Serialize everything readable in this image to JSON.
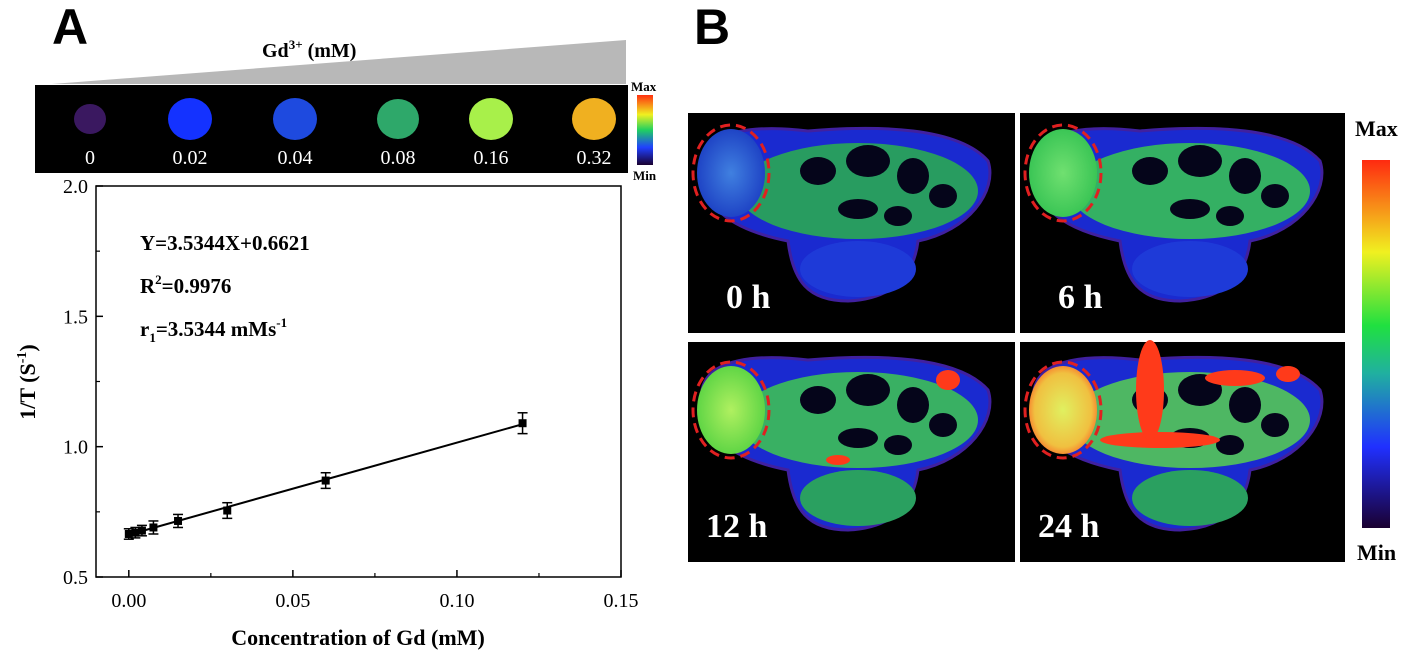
{
  "panel_a": {
    "label": "A",
    "gradient_title": "Gd",
    "gradient_title_sup": "3+",
    "gradient_title_unit": " (mM)",
    "phantoms": [
      {
        "label": "0",
        "color": "#3a1860"
      },
      {
        "label": "0.02",
        "color": "#1432ff"
      },
      {
        "label": "0.04",
        "color": "#1e4adf"
      },
      {
        "label": "0.08",
        "color": "#2ea86a"
      },
      {
        "label": "0.16",
        "color": "#a8f04a"
      },
      {
        "label": "0.32",
        "color": "#f0b020"
      }
    ],
    "colorbar": {
      "max": "Max",
      "min": "Min"
    }
  },
  "panel_b": {
    "label": "B",
    "frames": [
      {
        "label": "0 h"
      },
      {
        "label": "6 h"
      },
      {
        "label": "12 h"
      },
      {
        "label": "24 h"
      }
    ],
    "colorbar": {
      "max": "Max",
      "min": "Min"
    }
  },
  "chart_data": {
    "type": "scatter",
    "xlabel": "Concentration of Gd (mM)",
    "ylabel": "1/T (S",
    "ylabel_sup": "-1",
    "ylabel_end": ")",
    "xlim": [
      -0.01,
      0.15
    ],
    "ylim": [
      0.5,
      2.0
    ],
    "x_ticks": [
      0.0,
      0.05,
      0.1,
      0.15
    ],
    "x_tick_labels": [
      "0.00",
      "0.05",
      "0.10",
      "0.15"
    ],
    "y_ticks": [
      0.5,
      1.0,
      1.5,
      2.0
    ],
    "y_tick_labels": [
      "0.5",
      "1.0",
      "1.5",
      "2.0"
    ],
    "series": [
      {
        "x": [
          0.0,
          0.002,
          0.004,
          0.0075,
          0.015,
          0.03,
          0.06,
          0.12
        ],
        "y": [
          0.665,
          0.67,
          0.678,
          0.69,
          0.715,
          0.755,
          0.87,
          1.09
        ],
        "err": [
          0.02,
          0.02,
          0.02,
          0.025,
          0.025,
          0.03,
          0.03,
          0.04
        ]
      }
    ],
    "fit": {
      "slope": 3.5344,
      "intercept": 0.6621,
      "x_range": [
        0.0,
        0.12
      ]
    },
    "annotations": {
      "equation": "Y=3.5344X+0.6621",
      "r2_prefix": "R",
      "r2_sup": "2",
      "r2_value": "=0.9976",
      "r1_prefix": "r",
      "r1_sub": "1",
      "r1_value": "=3.5344 mMs",
      "r1_sup": "-1"
    }
  }
}
